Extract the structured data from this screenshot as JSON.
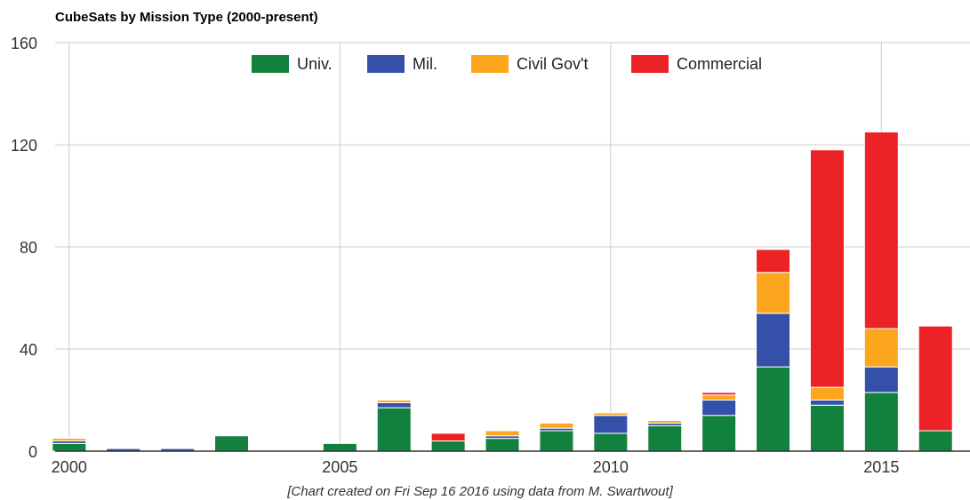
{
  "chart_data": {
    "type": "bar",
    "stacked": true,
    "title": "CubeSats by Mission Type (2000-present)",
    "footnote": "[Chart created on Fri Sep 16 2016 using data from M. Swartwout]",
    "x": [
      2000,
      2001,
      2002,
      2003,
      2004,
      2005,
      2006,
      2007,
      2008,
      2009,
      2010,
      2011,
      2012,
      2013,
      2014,
      2015,
      2016
    ],
    "x_tick_labels": [
      "2000",
      "2005",
      "2010",
      "2015"
    ],
    "x_tick_values": [
      2000,
      2005,
      2010,
      2015
    ],
    "ylim": [
      0,
      160
    ],
    "y_ticks": [
      0,
      40,
      80,
      120,
      160
    ],
    "y_tick_labels": [
      "0",
      "40",
      "80",
      "120",
      "160"
    ],
    "grid": true,
    "legend_position": "top",
    "series": [
      {
        "name": "Univ.",
        "color": "#11813d",
        "values": [
          3,
          0,
          0,
          6,
          0,
          3,
          17,
          4,
          5,
          8,
          7,
          10,
          14,
          33,
          18,
          23,
          8
        ]
      },
      {
        "name": "Mil.",
        "color": "#3550a8",
        "values": [
          1,
          1,
          1,
          0,
          0,
          0,
          2,
          0,
          1,
          1,
          7,
          1,
          6,
          21,
          2,
          10,
          0
        ]
      },
      {
        "name": "Civil Gov't",
        "color": "#fba61c",
        "values": [
          1,
          0,
          0,
          0,
          0,
          0,
          1,
          0,
          2,
          2,
          1,
          1,
          2,
          16,
          5,
          15,
          0
        ]
      },
      {
        "name": "Commercial",
        "color": "#ec2226",
        "values": [
          0,
          0,
          0,
          0,
          0,
          0,
          0,
          3,
          0,
          0,
          0,
          0,
          1,
          9,
          93,
          77,
          41
        ]
      }
    ]
  }
}
